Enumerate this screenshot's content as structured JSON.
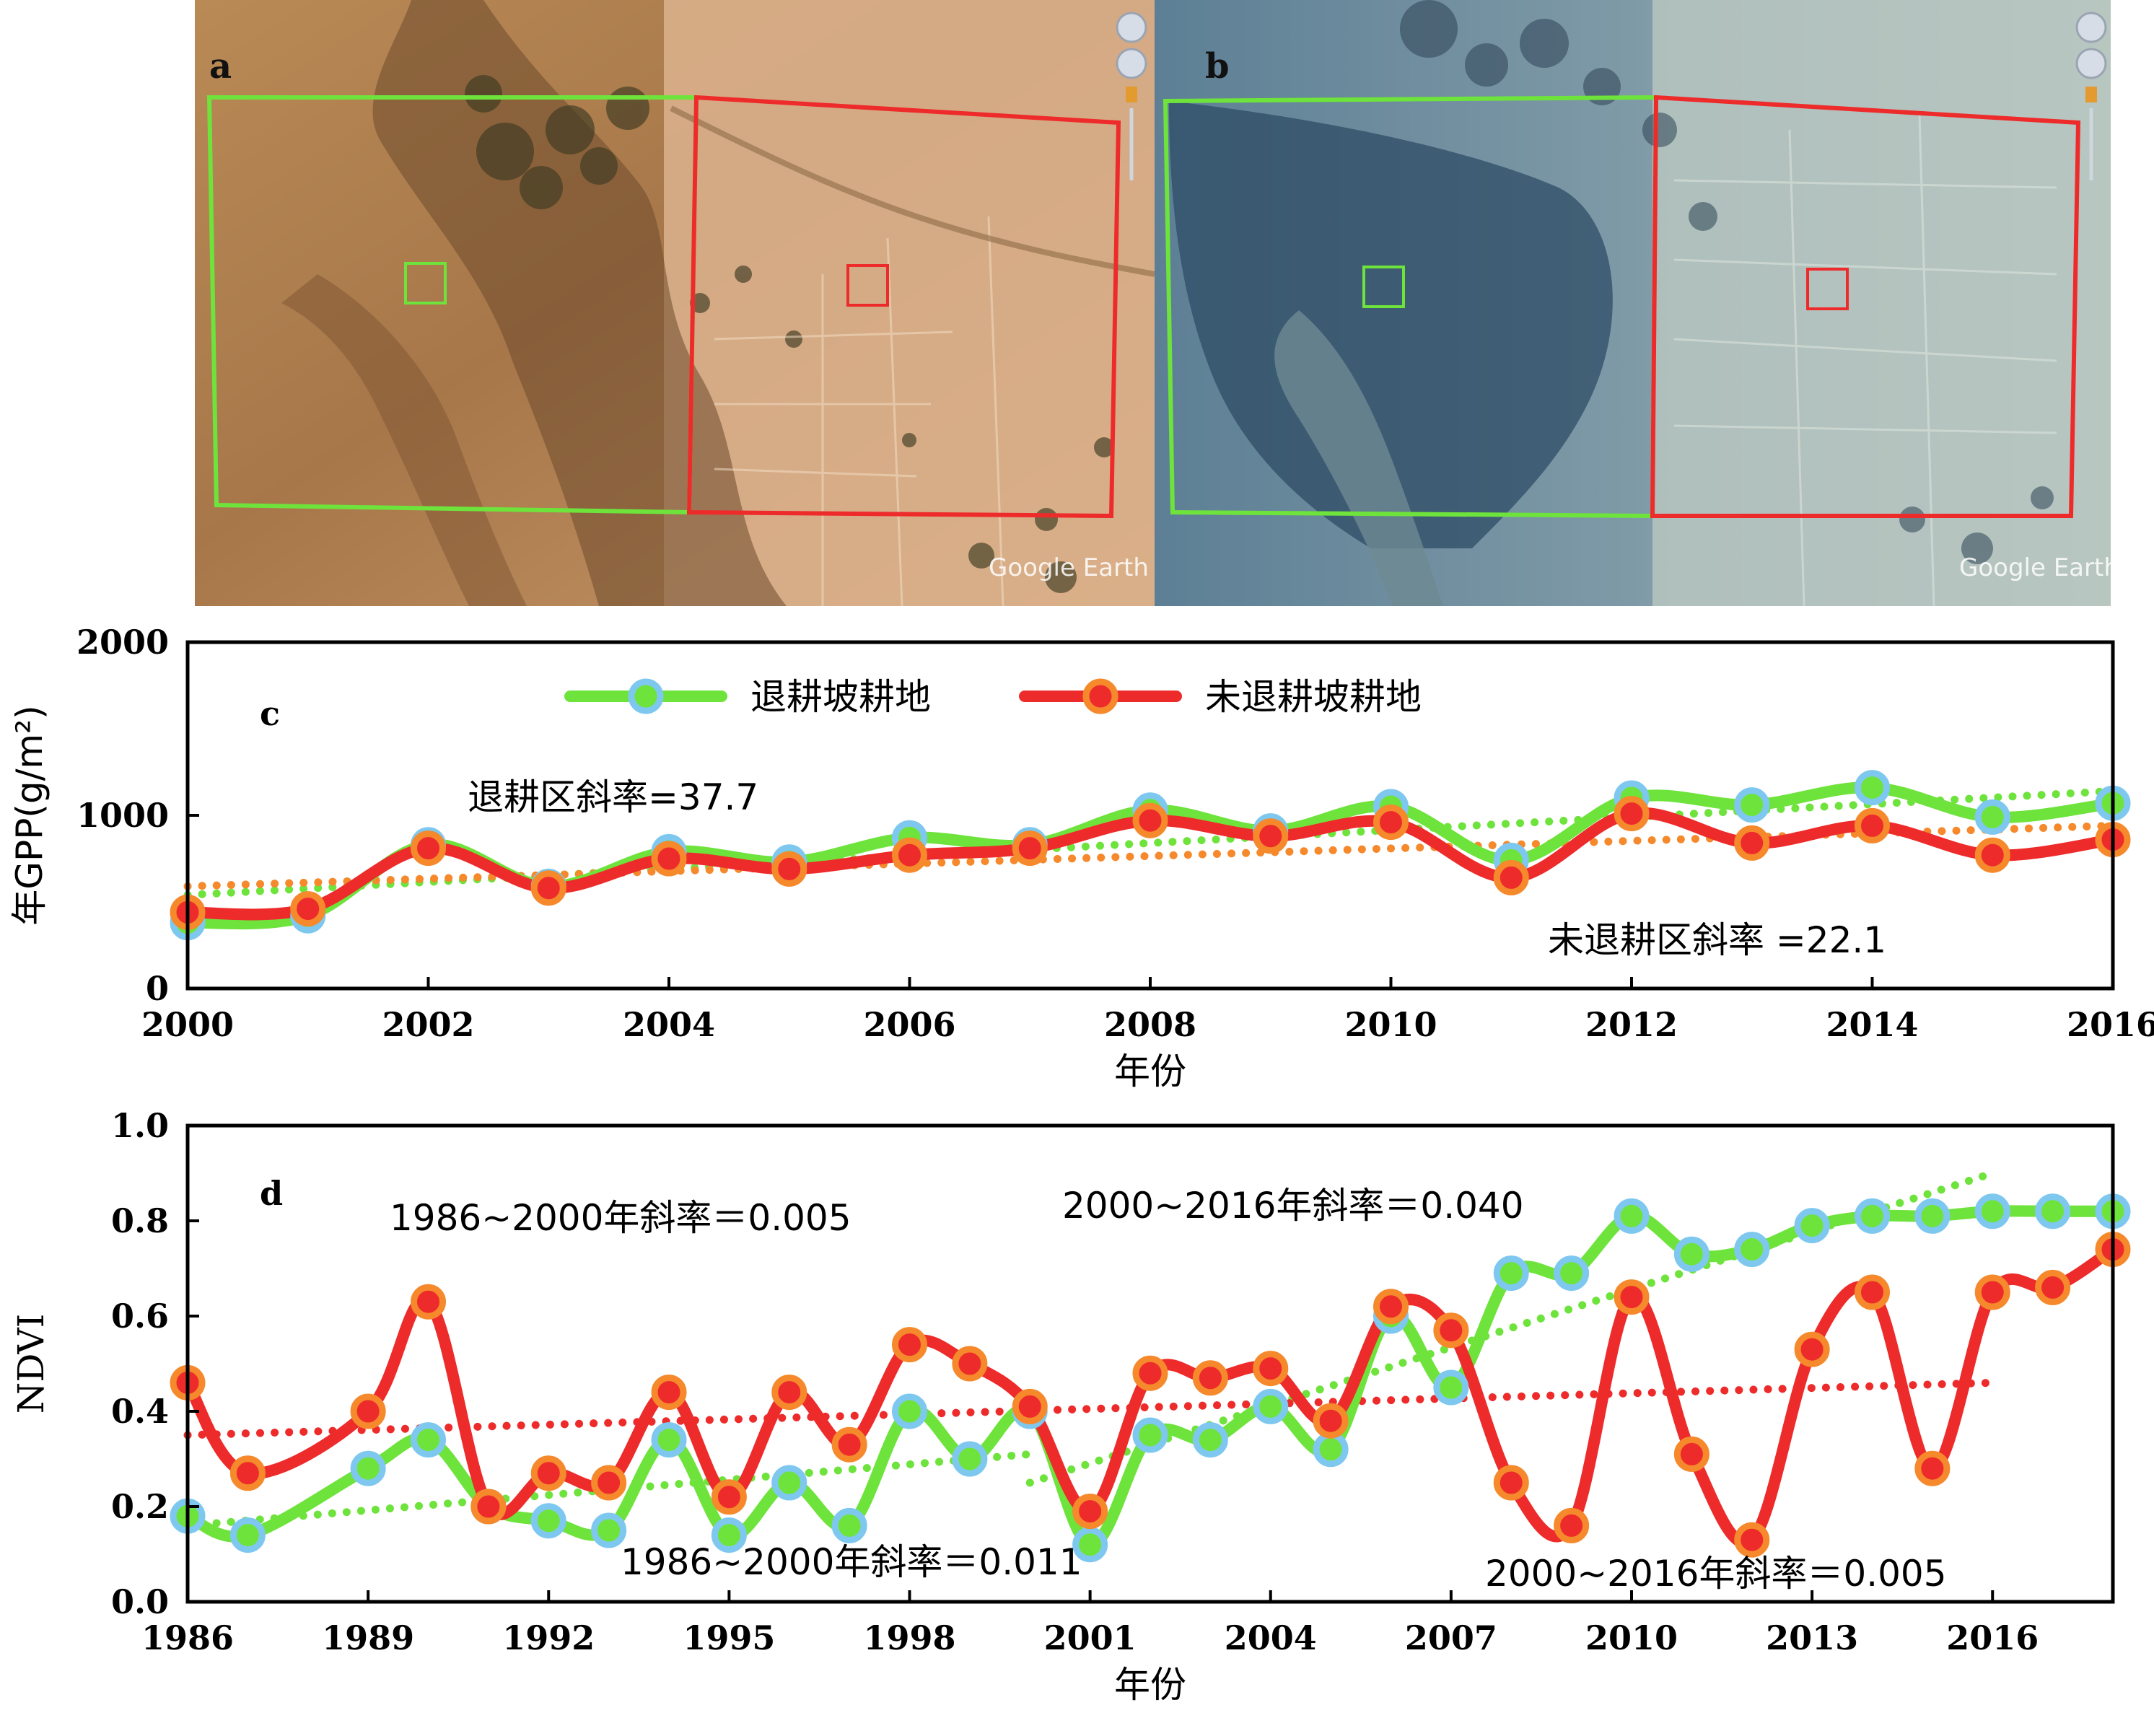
{
  "images": {
    "a": {
      "label": "a",
      "watermark": "Google Earth",
      "colors": {
        "retired": "#6ee33c",
        "unretired": "#ee2b2b"
      }
    },
    "b": {
      "label": "b",
      "watermark": "Google Earth",
      "colors": {
        "retired": "#6ee33c",
        "unretired": "#ee2b2b"
      }
    }
  },
  "chart_data": [
    {
      "id": "c",
      "type": "line",
      "panel_label": "c",
      "xlabel": "年份",
      "ylabel": "年GPP(g/m²)",
      "xlim": [
        2000,
        2016
      ],
      "ylim": [
        0,
        2000
      ],
      "xticks": [
        2000,
        2002,
        2004,
        2006,
        2008,
        2010,
        2012,
        2014,
        2016
      ],
      "yticks": [
        0,
        1000,
        2000
      ],
      "legend_position": "top",
      "x": [
        2000,
        2001,
        2002,
        2003,
        2004,
        2005,
        2006,
        2007,
        2008,
        2009,
        2010,
        2011,
        2012,
        2013,
        2014,
        2015,
        2016
      ],
      "series": [
        {
          "name": "退耕坡耕地",
          "color": "#6ee33c",
          "marker_outline": "#7ec8f0",
          "values": [
            380,
            420,
            830,
            590,
            790,
            730,
            870,
            830,
            1030,
            910,
            1050,
            740,
            1100,
            1060,
            1160,
            990,
            1070
          ],
          "trend": {
            "slope": 37.7,
            "start": 540,
            "end": 1140
          }
        },
        {
          "name": "未退耕坡耕地",
          "color": "#ee2b2b",
          "marker_outline": "#f5892b",
          "values": [
            440,
            460,
            810,
            580,
            750,
            690,
            770,
            810,
            970,
            880,
            960,
            640,
            1010,
            840,
            940,
            770,
            860
          ],
          "trend": {
            "slope": 22.1,
            "start": 590,
            "end": 940
          }
        }
      ],
      "annotations": [
        "退耕区斜率=37.7",
        "未退耕区斜率 =22.1"
      ]
    },
    {
      "id": "d",
      "type": "line",
      "panel_label": "d",
      "xlabel": "年份",
      "ylabel": "NDVI",
      "xlim": [
        1986,
        2018
      ],
      "ylim": [
        0,
        1.0
      ],
      "xticks": [
        1986,
        1989,
        1992,
        1995,
        1998,
        2001,
        2004,
        2007,
        2010,
        2013,
        2016
      ],
      "yticks": [
        0,
        0.2,
        0.4,
        0.6,
        0.8,
        1.0
      ],
      "x": [
        1986,
        1987,
        1989,
        1990,
        1991,
        1992,
        1993,
        1994,
        1995,
        1996,
        1997,
        1998,
        1999,
        2000,
        2001,
        2002,
        2003,
        2004,
        2005,
        2006,
        2007,
        2008,
        2009,
        2010,
        2011,
        2012,
        2013,
        2014,
        2015,
        2016,
        2017,
        2018
      ],
      "series": [
        {
          "name": "退耕坡耕地",
          "color": "#6ee33c",
          "marker_outline": "#7ec8f0",
          "values": [
            0.18,
            0.14,
            0.28,
            0.34,
            0.2,
            0.17,
            0.15,
            0.34,
            0.14,
            0.25,
            0.16,
            0.4,
            0.3,
            0.4,
            0.12,
            0.35,
            0.34,
            0.41,
            0.32,
            0.6,
            0.45,
            0.69,
            0.69,
            0.81,
            0.73,
            0.74,
            0.79,
            0.81,
            0.81,
            0.82,
            0.82,
            0.82
          ],
          "trends": [
            {
              "period": "1986~2000",
              "slope": 0.011,
              "x": [
                1986,
                2000
              ],
              "y": [
                0.16,
                0.31
              ]
            },
            {
              "period": "2000~2016",
              "slope": 0.04,
              "x": [
                2000,
                2016
              ],
              "y": [
                0.25,
                0.9
              ]
            }
          ]
        },
        {
          "name": "未退耕坡耕地",
          "color": "#ee2b2b",
          "marker_outline": "#f5892b",
          "values": [
            0.46,
            0.27,
            0.4,
            0.63,
            0.2,
            0.27,
            0.25,
            0.44,
            0.22,
            0.44,
            0.33,
            0.54,
            0.5,
            0.41,
            0.19,
            0.48,
            0.47,
            0.49,
            0.38,
            0.62,
            0.57,
            0.25,
            0.16,
            0.64,
            0.31,
            0.13,
            0.53,
            0.65,
            0.28,
            0.65,
            0.66,
            0.74
          ],
          "trends": [
            {
              "period": "1986~2016",
              "slope": 0.005,
              "x": [
                1986,
                2016
              ],
              "y": [
                0.35,
                0.46
              ]
            }
          ]
        }
      ],
      "annotations": [
        "1986~2000年斜率＝0.005",
        "2000~2016年斜率＝0.040",
        "1986~2000年斜率＝0.011",
        "2000~2016年斜率＝0.005"
      ]
    }
  ]
}
